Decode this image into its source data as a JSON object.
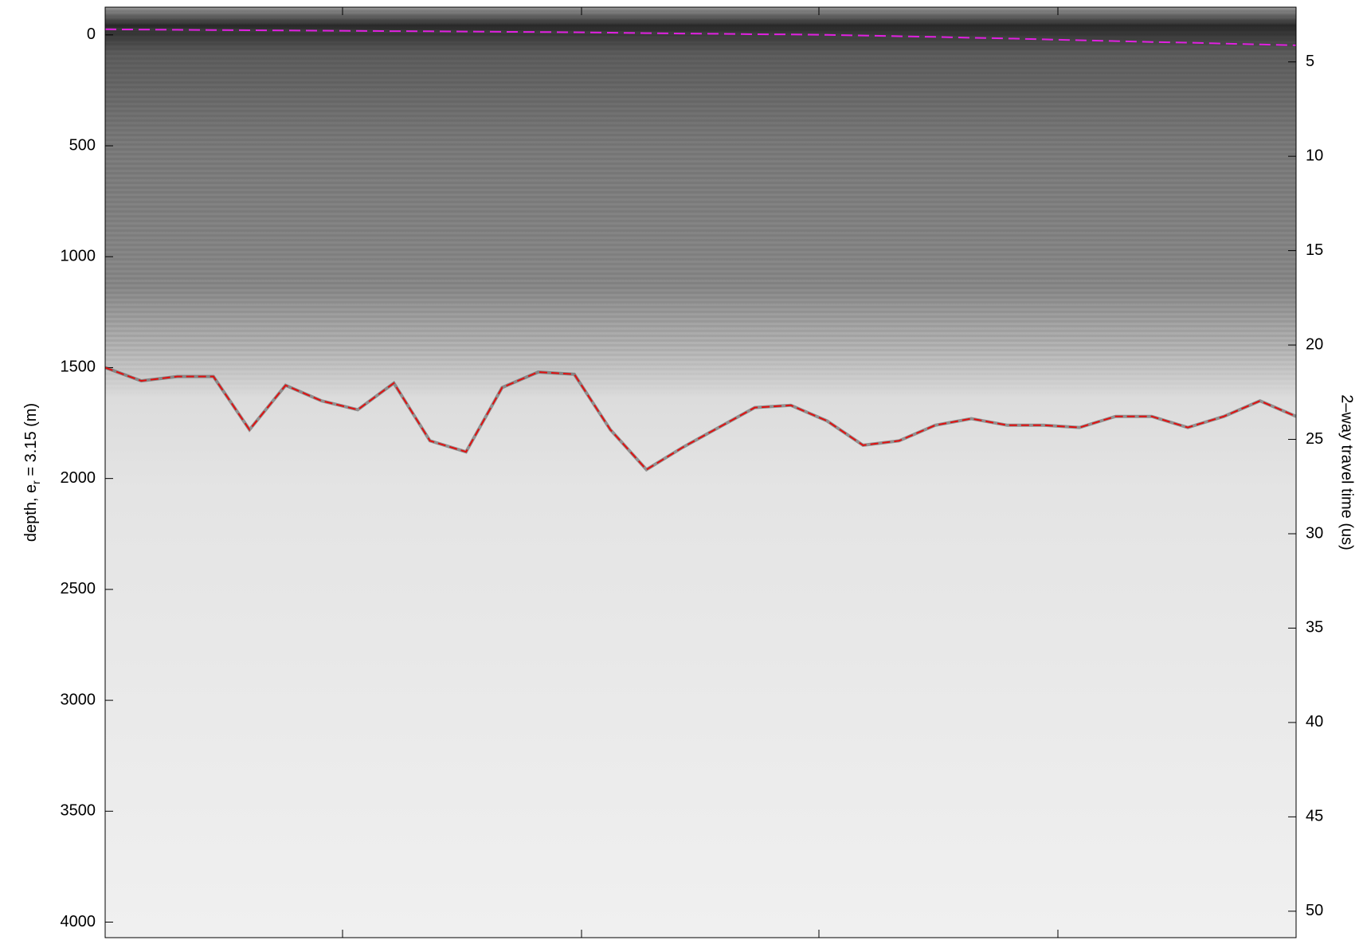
{
  "chart_data": {
    "type": "line",
    "ylabel": [
      "depth, e",
      "r",
      " = 3.15 (m)"
    ],
    "y2label": "2–way travel time (us)",
    "ylim": [
      -125,
      4070
    ],
    "yticks": [
      0,
      500,
      1000,
      1500,
      2000,
      2500,
      3000,
      3500,
      4000
    ],
    "y2lim": [
      2.1,
      51.4
    ],
    "y2ticks": [
      5,
      10,
      15,
      20,
      25,
      30,
      35,
      40,
      45,
      50
    ],
    "inverted": true,
    "categories": [
      null,
      null,
      null,
      null,
      null,
      null,
      null,
      null,
      null,
      null,
      null,
      null,
      null,
      null,
      null,
      null,
      null,
      null,
      null,
      null,
      null,
      null,
      null,
      null,
      null,
      null,
      null,
      null,
      null,
      null,
      null,
      null,
      null,
      null
    ],
    "series": [
      {
        "color": "#e020e0",
        "dash": "14 7",
        "values": [
          -25,
          -24,
          -23,
          -22,
          -21,
          -20,
          -19,
          -18,
          -17,
          -16,
          -15,
          -14,
          -13,
          -12,
          -10,
          -8,
          -6,
          -5,
          -3,
          -2,
          0,
          3,
          6,
          9,
          13,
          16,
          20,
          24,
          28,
          32,
          35,
          39,
          43,
          47
        ]
      },
      {
        "color": "#e01010",
        "dash": "10 5",
        "values": [
          1500,
          1560,
          1540,
          1540,
          1780,
          1580,
          1650,
          1690,
          1570,
          1830,
          1880,
          1590,
          1520,
          1530,
          1780,
          1960,
          1860,
          1770,
          1680,
          1670,
          1740,
          1850,
          1830,
          1760,
          1730,
          1760,
          1760,
          1770,
          1720,
          1720,
          1770,
          1720,
          1650,
          1720
        ]
      }
    ]
  }
}
